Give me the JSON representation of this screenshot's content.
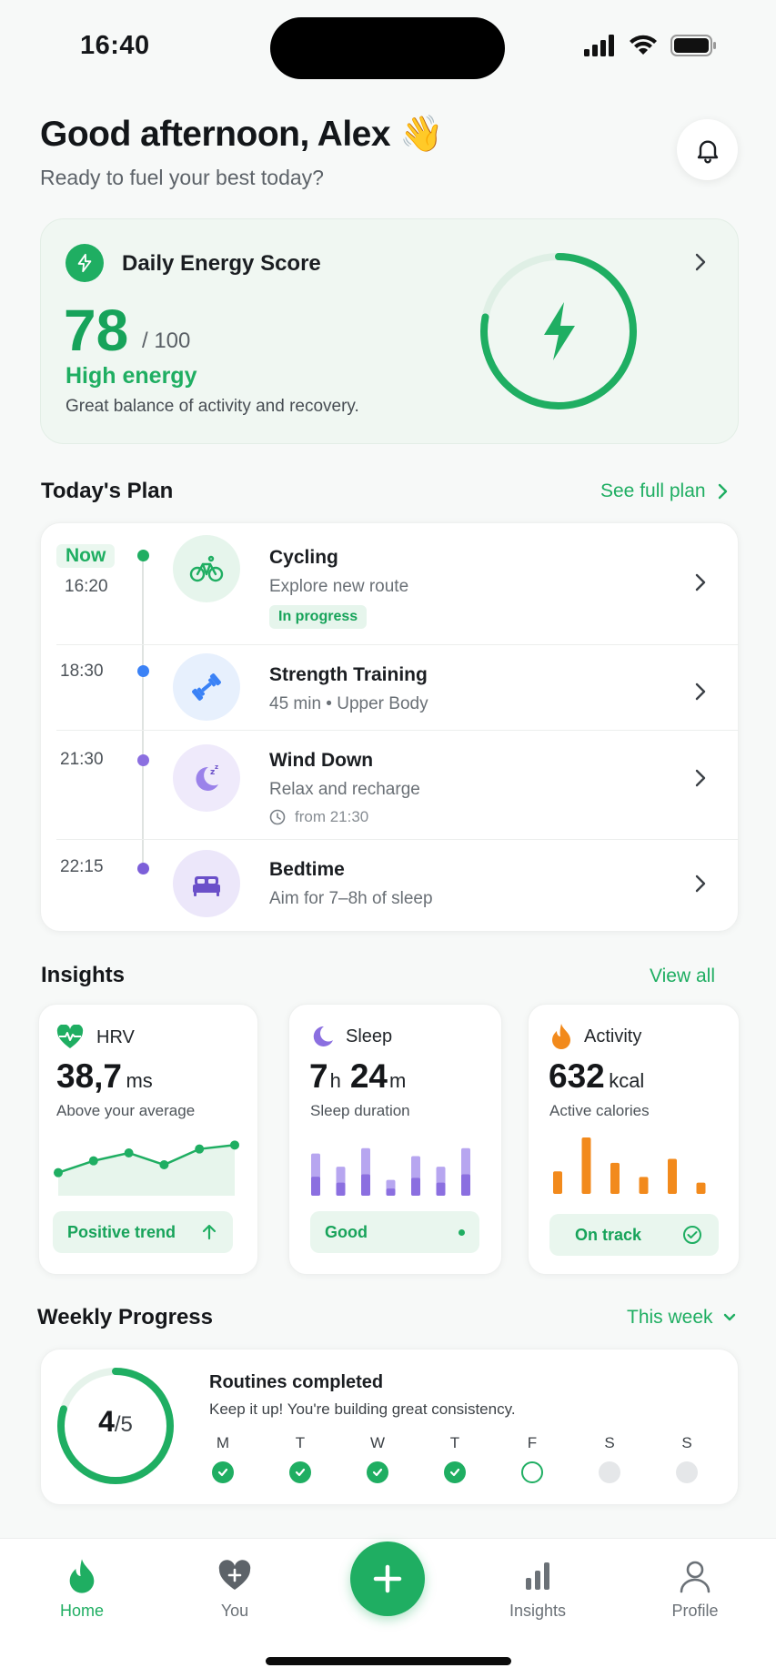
{
  "status": {
    "time": "16:40"
  },
  "header": {
    "greeting": "Good afternoon, Alex 👋",
    "subtitle": "Ready to fuel your best today?"
  },
  "energy": {
    "title": "Daily Energy Score",
    "score": "78",
    "max": "/ 100",
    "score_fraction": 0.78,
    "level": "High energy",
    "description": "Great balance of activity and recovery."
  },
  "plan": {
    "title": "Today's Plan",
    "link": "See full plan",
    "items": [
      {
        "now": "Now",
        "time": "16:20",
        "title": "Cycling",
        "subtitle": "Explore new route",
        "badge": "In progress",
        "icon": "bicycle-icon",
        "dot_color": "#1fae62",
        "icon_bg": "#e6f5ec"
      },
      {
        "time": "18:30",
        "title": "Strength Training",
        "subtitle": "45 min • Upper Body",
        "icon": "dumbbell-icon",
        "dot_color": "#3b82f6",
        "icon_bg": "#e7f0fd"
      },
      {
        "time": "21:30",
        "title": "Wind Down",
        "subtitle": "Relax and recharge",
        "extra": "from 21:30",
        "icon": "moon-sleep-icon",
        "dot_color": "#8b6fe0",
        "icon_bg": "#efeafb"
      },
      {
        "time": "22:15",
        "title": "Bedtime",
        "subtitle": "Aim for 7–8h of sleep",
        "icon": "bed-icon",
        "dot_color": "#7c5fd9",
        "icon_bg": "#ece7fa"
      }
    ]
  },
  "insights": {
    "title": "Insights",
    "link": "View all",
    "hrv": {
      "label": "HRV",
      "value": "38,7",
      "unit": "ms",
      "desc": "Above your average",
      "pill": "Positive trend",
      "trend": [
        32,
        35,
        37,
        34,
        38,
        39
      ]
    },
    "sleep": {
      "label": "Sleep",
      "h": "7",
      "h_unit": "h",
      "m": "24",
      "m_unit": "m",
      "desc": "Sleep duration",
      "pill": "Good",
      "bars": [
        0.8,
        0.55,
        0.9,
        0.3,
        0.75,
        0.55,
        0.9
      ]
    },
    "activity": {
      "label": "Activity",
      "value": "632",
      "unit": "kcal",
      "desc": "Active calories",
      "pill": "On track",
      "bars": [
        0.4,
        1.0,
        0.55,
        0.3,
        0.62,
        0.2
      ]
    }
  },
  "weekly": {
    "title": "Weekly Progress",
    "filter": "This week",
    "completed": "4",
    "total": "/5",
    "fraction": 0.8,
    "heading": "Routines completed",
    "desc": "Keep it up! You're building great consistency.",
    "days": [
      {
        "letter": "M",
        "state": "done"
      },
      {
        "letter": "T",
        "state": "done"
      },
      {
        "letter": "W",
        "state": "done"
      },
      {
        "letter": "T",
        "state": "done"
      },
      {
        "letter": "F",
        "state": "today"
      },
      {
        "letter": "S",
        "state": "future"
      },
      {
        "letter": "S",
        "state": "future"
      }
    ]
  },
  "tabs": [
    {
      "label": "Home",
      "icon": "flame-icon",
      "active": true
    },
    {
      "label": "You",
      "icon": "heart-plus-icon"
    },
    {
      "label": "Insights",
      "icon": "bar-chart-icon"
    },
    {
      "label": "Profile",
      "icon": "user-icon"
    }
  ],
  "colors": {
    "accent": "#1fae62",
    "sleep": "#8b6fe0",
    "activity": "#f28a1c"
  }
}
